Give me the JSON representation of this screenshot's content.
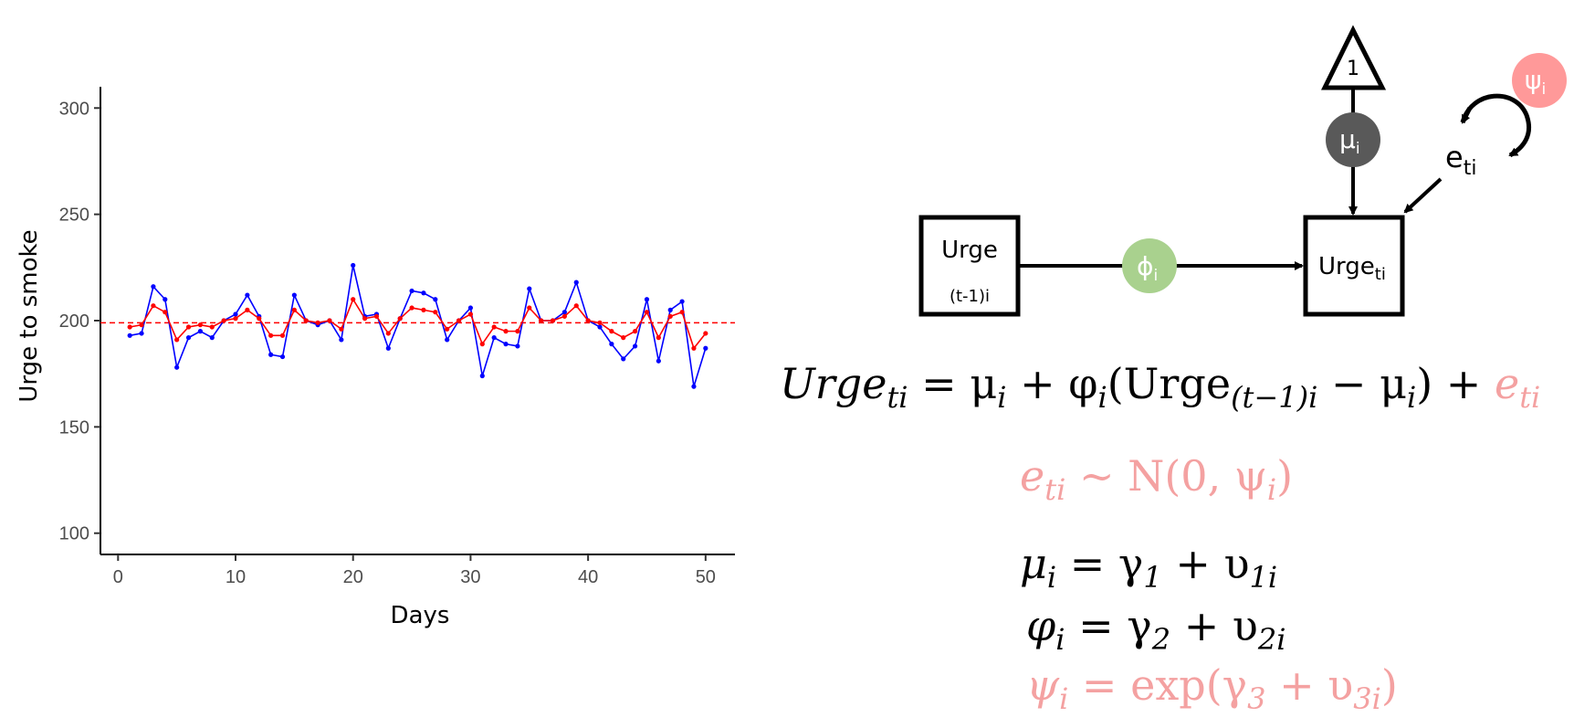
{
  "chart_data": {
    "type": "line",
    "xlabel": "Days",
    "ylabel": "Urge to smoke",
    "xlim": [
      -1.5,
      52.5
    ],
    "ylim": [
      90,
      310
    ],
    "xticks": [
      0,
      10,
      20,
      30,
      40,
      50
    ],
    "yticks": [
      100,
      150,
      200,
      250,
      300
    ],
    "grid": false,
    "legend": "none",
    "reference_line": {
      "y": 199,
      "color": "#ff0000",
      "style": "dashed"
    },
    "x": [
      1,
      2,
      3,
      4,
      5,
      6,
      7,
      8,
      9,
      10,
      11,
      12,
      13,
      14,
      15,
      16,
      17,
      18,
      19,
      20,
      21,
      22,
      23,
      24,
      25,
      26,
      27,
      28,
      29,
      30,
      31,
      32,
      33,
      34,
      35,
      36,
      37,
      38,
      39,
      40,
      41,
      42,
      43,
      44,
      45,
      46,
      47,
      48,
      49,
      50
    ],
    "series": [
      {
        "color": "#0000ff",
        "values": [
          193,
          194,
          216,
          210,
          178,
          192,
          195,
          192,
          200,
          203,
          212,
          202,
          184,
          183,
          212,
          200,
          198,
          200,
          191,
          226,
          202,
          203,
          187,
          201,
          214,
          213,
          210,
          191,
          200,
          206,
          174,
          192,
          189,
          188,
          215,
          200,
          200,
          204,
          218,
          200,
          197,
          189,
          182,
          188,
          210,
          181,
          205,
          209,
          169,
          187
        ]
      },
      {
        "color": "#ff0000",
        "values": [
          197,
          198,
          207,
          204,
          191,
          197,
          198,
          197,
          200,
          201,
          205,
          201,
          193,
          193,
          205,
          200,
          199,
          200,
          196,
          210,
          201,
          202,
          194,
          201,
          206,
          205,
          204,
          196,
          200,
          203,
          189,
          197,
          195,
          195,
          206,
          200,
          200,
          202,
          207,
          200,
          199,
          195,
          192,
          195,
          204,
          192,
          202,
          204,
          187,
          194
        ]
      }
    ]
  },
  "diagram": {
    "node_prev_line1": "Urge",
    "node_prev_line2": "(t-1)i",
    "node_curr": "Urge",
    "node_curr_sub": "ti",
    "phi_label": "ϕ",
    "phi_sub": "i",
    "mu_label": "μ",
    "mu_sub": "i",
    "const_label": "1",
    "error_label": "e",
    "error_sub": "ti",
    "psi_label": "ψ",
    "psi_sub": "i",
    "colors": {
      "phi": "#a9d18e",
      "mu": "#595959",
      "psi": "#ff9999",
      "pink_text": "#f4a1a1"
    }
  },
  "equations": {
    "eq1": {
      "lhs": "Urge",
      "lhs_sub": "ti",
      "mid1": " = μ",
      "mid1_sub": "i",
      "mid2": " + φ",
      "mid2_sub": "i",
      "mid3": "(Urge",
      "mid3_sub": "(t−1)i",
      "mid4": " − μ",
      "mid4_sub": "i",
      "mid5": ") + ",
      "err": "e",
      "err_sub": "ti"
    },
    "eq2": {
      "a": "e",
      "a_sub": "ti",
      "b": " ~ N(0, ψ",
      "b_sub": "i",
      "c": ")"
    },
    "eq3": {
      "a": "μ",
      "a_sub": "i",
      "b": " =  γ",
      "b_sub": "1",
      "c": " +  υ",
      "c_sub": "1i"
    },
    "eq4": {
      "a": "φ",
      "a_sub": "i",
      "b": " =  γ",
      "b_sub": "2",
      "c": " +  υ",
      "c_sub": "2i"
    },
    "eq5": {
      "a": "ψ",
      "a_sub": "i",
      "b": " = exp(γ",
      "b_sub": "3",
      "c": " +  υ",
      "c_sub": "3i",
      "d": ")"
    }
  }
}
